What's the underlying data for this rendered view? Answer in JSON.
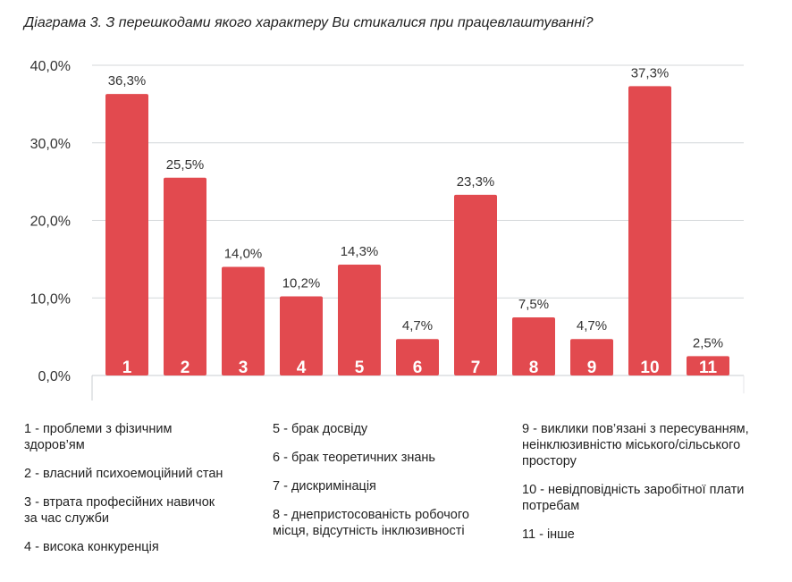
{
  "chart_data": {
    "type": "bar",
    "title": "Діаграма 3. З перешкодами якого характеру Ви стикалися при працевлаштуванні?",
    "categories": [
      "1",
      "2",
      "3",
      "4",
      "5",
      "6",
      "7",
      "8",
      "9",
      "10",
      "11"
    ],
    "values": [
      36.3,
      25.5,
      14.0,
      10.2,
      14.3,
      4.7,
      23.3,
      7.5,
      4.7,
      37.3,
      2.5
    ],
    "data_labels": [
      "36,3%",
      "25,5%",
      "14,0%",
      "10,2%",
      "14,3%",
      "4,7%",
      "23,3%",
      "7,5%",
      "4,7%",
      "37,3%",
      "2,5%"
    ],
    "yticks": [
      0,
      10,
      20,
      30,
      40
    ],
    "ytick_labels": [
      "0,0%",
      "10,0%",
      "20,0%",
      "30,0%",
      "40,0%"
    ],
    "ylim": [
      0,
      40
    ],
    "xlabel": "",
    "ylabel": "",
    "grid": true,
    "bar_color": "#e24a4f",
    "legend": [
      [
        "1 - проблеми з фізичним здоров’ям",
        "2 - власний психоемоційний стан",
        "3 - втрата професійних навичок за час служби",
        "4 - висока конкуренція"
      ],
      [
        "5 - брак досвіду",
        "6 - брак теоретичних знань",
        "7 - дискримінація",
        "8 - днепристосованість робочого місця, відсутність інклюзивності"
      ],
      [
        "9 - виклики пов’язані з пересуванням, неінклюзивністю міського/сільського простору",
        "10 - невідповідність заробітної плати потребам",
        "11 - інше"
      ]
    ]
  }
}
